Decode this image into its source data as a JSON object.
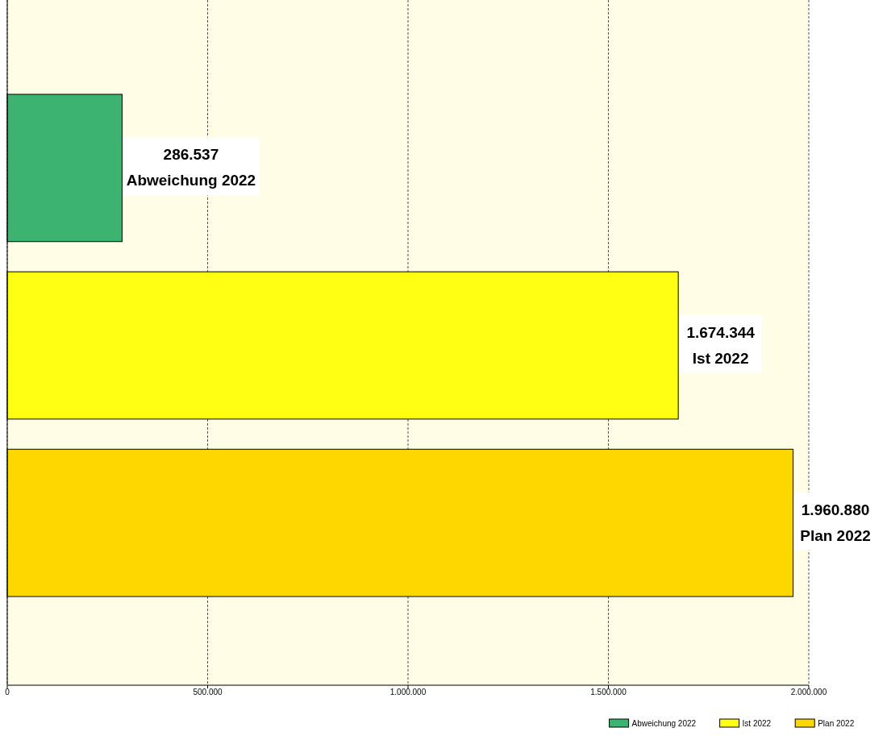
{
  "chart_data": {
    "type": "bar",
    "orientation": "horizontal",
    "categories": [
      null,
      null,
      null
    ],
    "series": [
      {
        "name": "Abweichung 2022",
        "color": "#3cb371",
        "values": [
          286537,
          null,
          null
        ],
        "value_labels": [
          "286.537",
          null,
          null
        ]
      },
      {
        "name": "Ist 2022",
        "color": "#ffff14",
        "values": [
          null,
          1674344,
          null
        ],
        "value_labels": [
          null,
          "1.674.344",
          null
        ]
      },
      {
        "name": "Plan 2022",
        "color": "#ffd700",
        "values": [
          null,
          null,
          1960880
        ],
        "value_labels": [
          null,
          null,
          "1.960.880"
        ]
      }
    ],
    "xlim": [
      0,
      2000000
    ],
    "xticks": [
      0,
      {
        "value": 500000,
        "label": "500.000"
      },
      {
        "value": 1000000,
        "label": "1.000.000"
      },
      {
        "value": 1500000,
        "label": "1.500.000"
      },
      {
        "value": 2000000,
        "label": "2.000.000"
      }
    ],
    "grid": "x",
    "legend": "bottom right",
    "tick_labels": "x"
  }
}
